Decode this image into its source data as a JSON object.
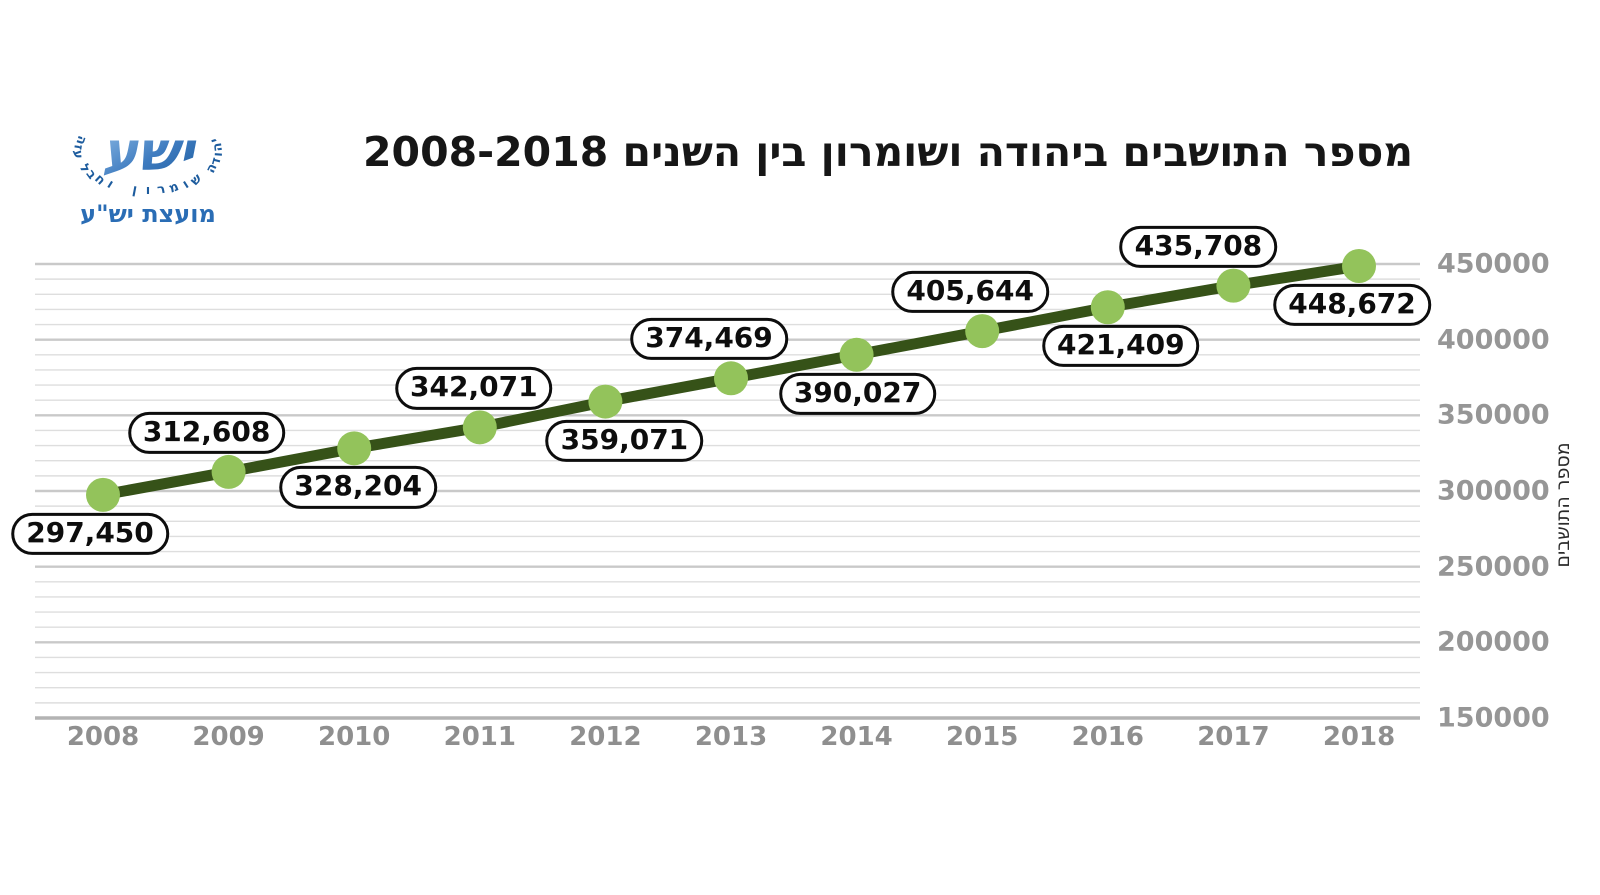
{
  "logo": {
    "brand": "ישע",
    "arc_text": "יהודה שומרון וחבל עזה",
    "council_name": "מועצת יש\"ע",
    "brand_color_dark": "#1d5c9e",
    "brand_color_light": "#93bfe8",
    "council_color": "#2a6db5"
  },
  "title": "מספר התושבים ביהודה ושומרון בין השנים 2008-2018",
  "chart_data": {
    "type": "line",
    "title": "מספר התושבים ביהודה ושומרון בין השנים 2008-2018",
    "xlabel": "",
    "ylabel": "מספר התושבים",
    "categories": [
      "2008",
      "2009",
      "2010",
      "2011",
      "2012",
      "2013",
      "2014",
      "2015",
      "2016",
      "2017",
      "2018"
    ],
    "values": [
      297450,
      312608,
      328204,
      342071,
      359071,
      374469,
      390027,
      405644,
      421409,
      435708,
      448672
    ],
    "point_labels": [
      "297,450",
      "312,608",
      "328,204",
      "342,071",
      "359,071",
      "374,469",
      "390,027",
      "405,644",
      "421,409",
      "435,708",
      "448,672"
    ],
    "point_label_placement": [
      "below",
      "above",
      "below",
      "above",
      "below",
      "above",
      "below",
      "above",
      "below",
      "above",
      "below"
    ],
    "ylim": [
      150000,
      450000
    ],
    "y_major_step": 50000,
    "y_minor_step": 10000,
    "y_tick_labels": [
      "150000",
      "200000",
      "250000",
      "300000",
      "350000",
      "400000",
      "450000"
    ],
    "grid": "horizontal, minor every 10000, major every 50000",
    "legend": "none",
    "line_color": "#365218",
    "marker_color": "#93c35b",
    "gridline_minor_color": "#dedede",
    "gridline_major_color": "#c9c9c9",
    "baseline_color": "#b3b3b3",
    "tick_label_color": "#969696"
  }
}
